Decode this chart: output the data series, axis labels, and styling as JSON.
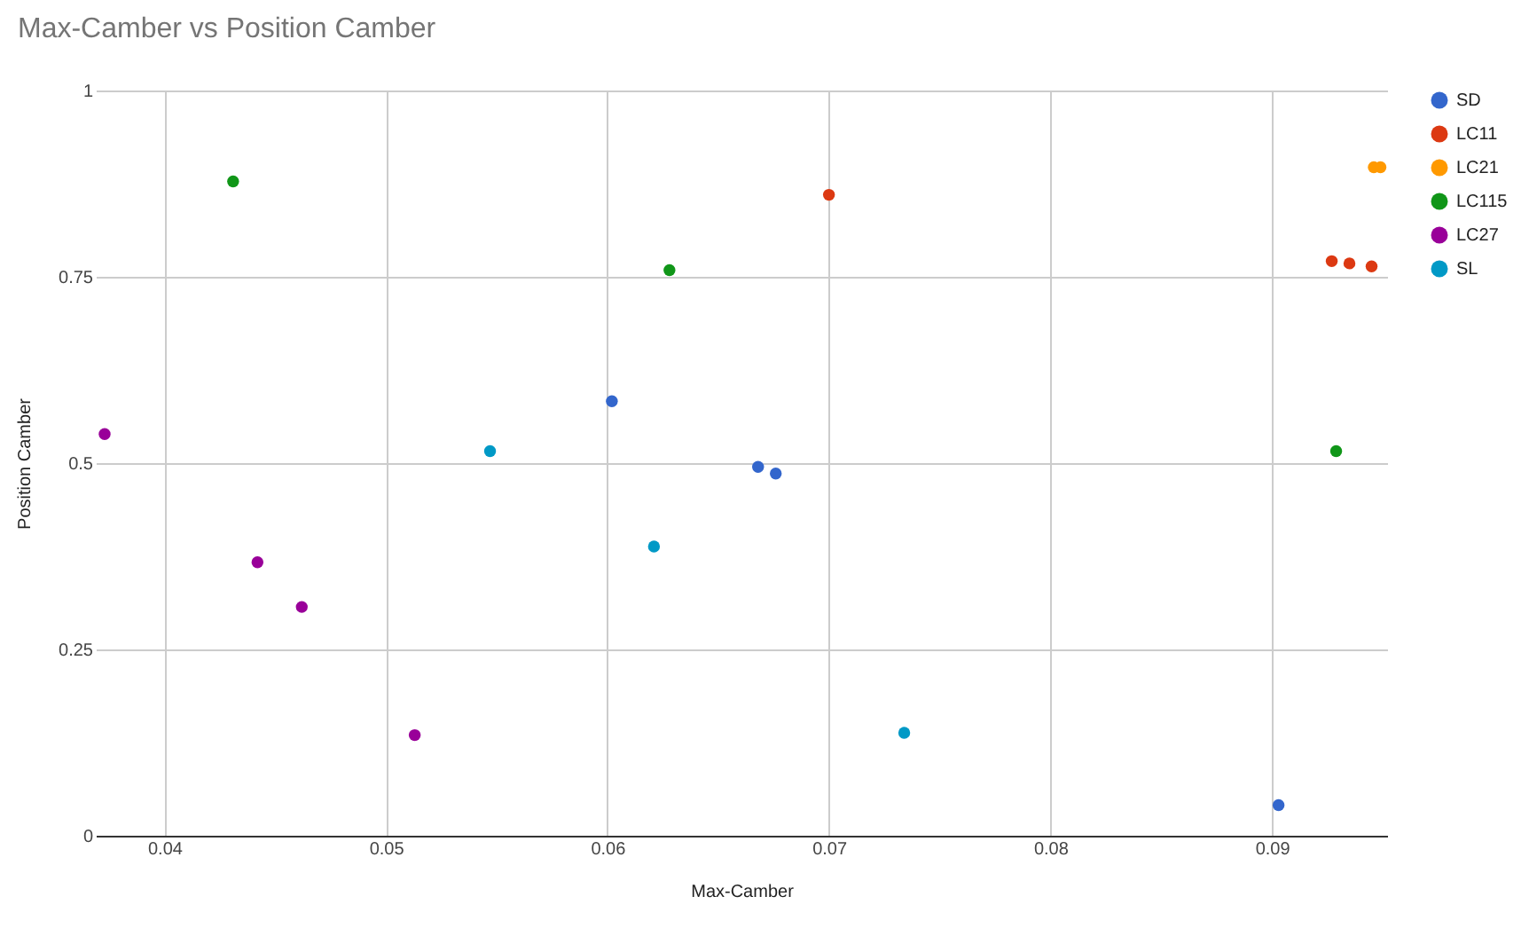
{
  "chart_data": {
    "type": "scatter",
    "title": "Max-Camber vs Position Camber",
    "xlabel": "Max-Camber",
    "ylabel": "Position Camber",
    "xlim": [
      0.0369,
      0.0952
    ],
    "xticks": [
      0.04,
      0.05,
      0.06,
      0.07,
      0.08,
      0.09
    ],
    "ylim": [
      0,
      1
    ],
    "yticks": [
      0,
      0.25,
      0.5,
      0.75,
      1
    ],
    "grid": true,
    "legend": "top right",
    "marker": "circle",
    "series": [
      {
        "name": "SD",
        "color": "#3366cc",
        "x": [
          0.0602,
          0.0668,
          0.0676,
          0.0903
        ],
        "values": [
          0.583,
          0.495,
          0.486,
          0.041
        ]
      },
      {
        "name": "LC11",
        "color": "#dc3912",
        "x": [
          0.07,
          0.0927,
          0.0935,
          0.0945
        ],
        "values": [
          0.86,
          0.771,
          0.768,
          0.764
        ]
      },
      {
        "name": "LC21",
        "color": "#ff9900",
        "x": [
          0.0946,
          0.0949
        ],
        "values": [
          0.897,
          0.897
        ]
      },
      {
        "name": "LC115",
        "color": "#109618",
        "x": [
          0.0431,
          0.0628,
          0.0929
        ],
        "values": [
          0.878,
          0.759,
          0.516
        ]
      },
      {
        "name": "LC27",
        "color": "#990099",
        "x": [
          0.0373,
          0.0442,
          0.0462,
          0.0513
        ],
        "values": [
          0.539,
          0.367,
          0.307,
          0.135
        ]
      },
      {
        "name": "SL",
        "color": "#0099c6",
        "x": [
          0.0547,
          0.0621,
          0.0734
        ],
        "values": [
          0.516,
          0.388,
          0.138
        ]
      }
    ]
  }
}
